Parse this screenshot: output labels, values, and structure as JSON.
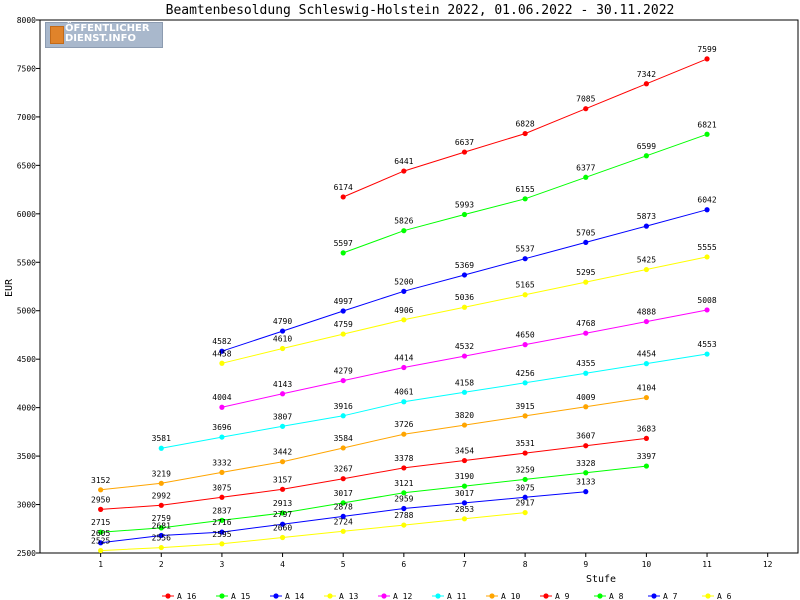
{
  "logo": {
    "line1": "ÖFFENTLICHER",
    "line2": "DIENST.INFO"
  },
  "chart_data": {
    "type": "line",
    "title": "Beamtenbesoldung Schleswig-Holstein 2022, 01.06.2022 - 30.11.2022",
    "xlabel": "Stufe",
    "ylabel": "EUR",
    "xlim": [
      0,
      12.5
    ],
    "ylim": [
      2500,
      8000
    ],
    "x_ticks": [
      1,
      2,
      3,
      4,
      5,
      6,
      7,
      8,
      9,
      10,
      11,
      12
    ],
    "y_ticks": [
      2500,
      3000,
      3500,
      4000,
      4500,
      5000,
      5500,
      6000,
      6500,
      7000,
      7500,
      8000
    ],
    "grid": false,
    "legend_position": "bottom",
    "series": [
      {
        "name": "A_16",
        "color": "#ff0000",
        "x": [
          5,
          6,
          7,
          8,
          9,
          10,
          11
        ],
        "values": [
          6174,
          6441,
          6637,
          6828,
          7085,
          7342,
          7599
        ]
      },
      {
        "name": "A_15",
        "color": "#00ff00",
        "x": [
          5,
          6,
          7,
          8,
          9,
          10,
          11
        ],
        "values": [
          5597,
          5826,
          5993,
          6155,
          6377,
          6599,
          6821
        ]
      },
      {
        "name": "A_14",
        "color": "#0000ff",
        "x": [
          3,
          4,
          5,
          6,
          7,
          8,
          9,
          10,
          11
        ],
        "values": [
          4582,
          4790,
          4997,
          5200,
          5369,
          5537,
          5705,
          5873,
          6042
        ]
      },
      {
        "name": "A_13",
        "color": "#ffff00",
        "x": [
          3,
          4,
          5,
          6,
          7,
          8,
          9,
          10,
          11
        ],
        "values": [
          4458,
          4610,
          4759,
          4906,
          5036,
          5165,
          5295,
          5425,
          5555
        ]
      },
      {
        "name": "A_12",
        "color": "#ff00ff",
        "x": [
          3,
          4,
          5,
          6,
          7,
          8,
          9,
          10,
          11
        ],
        "values": [
          4004,
          4143,
          4279,
          4414,
          4532,
          4650,
          4768,
          4888,
          5008
        ]
      },
      {
        "name": "A_11",
        "color": "#00ffff",
        "x": [
          2,
          3,
          4,
          5,
          6,
          7,
          8,
          9,
          10,
          11
        ],
        "values": [
          3581,
          3696,
          3807,
          3916,
          4061,
          4158,
          4256,
          4355,
          4454,
          4553
        ]
      },
      {
        "name": "A_10",
        "color": "#ffa500",
        "x": [
          1,
          2,
          3,
          4,
          5,
          6,
          7,
          8,
          9,
          10
        ],
        "values": [
          3152,
          3219,
          3332,
          3442,
          3584,
          3726,
          3820,
          3915,
          4009,
          4104
        ]
      },
      {
        "name": "A_9",
        "color": "#ff0000",
        "x": [
          1,
          2,
          3,
          4,
          5,
          6,
          7,
          8,
          9,
          10
        ],
        "values": [
          2950,
          2992,
          3075,
          3157,
          3267,
          3378,
          3454,
          3531,
          3607,
          3683
        ]
      },
      {
        "name": "A_8",
        "color": "#00ff00",
        "x": [
          1,
          2,
          3,
          4,
          5,
          6,
          7,
          8,
          9,
          10
        ],
        "values": [
          2715,
          2759,
          2837,
          2913,
          3017,
          3121,
          3190,
          3259,
          3328,
          3397
        ]
      },
      {
        "name": "A_7",
        "color": "#0000ff",
        "x": [
          1,
          2,
          3,
          4,
          5,
          6,
          7,
          8,
          9
        ],
        "values": [
          2605,
          2681,
          2716,
          2797,
          2878,
          2959,
          3017,
          3075,
          3133
        ]
      },
      {
        "name": "A_6",
        "color": "#ffff00",
        "x": [
          1,
          2,
          3,
          4,
          5,
          6,
          7,
          8
        ],
        "values": [
          2525,
          2556,
          2595,
          2660,
          2724,
          2788,
          2853,
          2917
        ]
      }
    ]
  }
}
